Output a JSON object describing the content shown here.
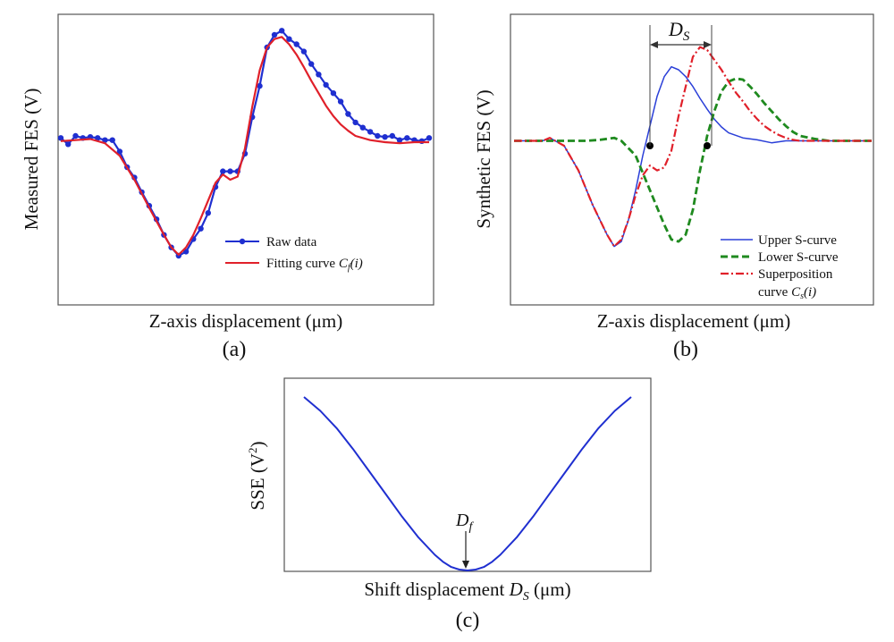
{
  "panels": [
    {
      "id": "a",
      "caption": "(a)",
      "xlabel": "Z-axis displacement (μm)",
      "ylabel": "Measured FES (V)",
      "legend": [
        {
          "label": "Raw data",
          "color": "#1f2fd0",
          "style": "line-dot"
        },
        {
          "label_main": "Fitting curve ",
          "label_sym": "C",
          "label_sub": "f",
          "label_tail": "(i)",
          "color": "#e0202a",
          "style": "line"
        }
      ]
    },
    {
      "id": "b",
      "caption": "(b)",
      "xlabel": "Z-axis displacement (μm)",
      "ylabel": "Synthetic FES (V)",
      "annotation": {
        "main": "D",
        "sub": "S"
      },
      "legend": [
        {
          "label": "Upper S-curve",
          "color": "#2a3fd8",
          "style": "line"
        },
        {
          "label": "Lower S-curve",
          "color": "#1f8a1f",
          "style": "dashed"
        },
        {
          "label": "Superposition",
          "label2_main": "curve ",
          "label2_sym": "C",
          "label2_sub": "s",
          "label2_tail": "(i)",
          "color": "#e0202a",
          "style": "dashdot"
        }
      ]
    },
    {
      "id": "c",
      "caption": "(c)",
      "xlabel_main": "Shift displacement ",
      "xlabel_sym": "D",
      "xlabel_sub": "S",
      "xlabel_tail": " (μm)",
      "ylabel_main": "SSE  (V",
      "ylabel_sup": "2",
      "ylabel_tail": ")",
      "annotation": {
        "main": "D",
        "sub": "f"
      }
    }
  ],
  "chart_data": [
    {
      "type": "line",
      "panel": "a",
      "xlim": [
        0,
        100
      ],
      "ylim": [
        -1.2,
        1.1
      ],
      "series": [
        {
          "name": "Raw data",
          "color": "#1f2fd0",
          "x": [
            0,
            2,
            4,
            6,
            8,
            10,
            12,
            14,
            16,
            18,
            20,
            22,
            24,
            26,
            28,
            30,
            32,
            34,
            36,
            38,
            40,
            42,
            44,
            46,
            48,
            50,
            52,
            54,
            56,
            58,
            60,
            62,
            64,
            66,
            68,
            70,
            72,
            74,
            76,
            78,
            80,
            82,
            84,
            86,
            88,
            90,
            92,
            94,
            96,
            98,
            100
          ],
          "y": [
            0.05,
            -0.01,
            0.07,
            0.05,
            0.06,
            0.05,
            0.03,
            0.03,
            -0.08,
            -0.23,
            -0.33,
            -0.47,
            -0.6,
            -0.73,
            -0.88,
            -1.0,
            -1.08,
            -1.04,
            -0.92,
            -0.82,
            -0.67,
            -0.42,
            -0.27,
            -0.27,
            -0.27,
            -0.1,
            0.25,
            0.55,
            0.92,
            1.04,
            1.08,
            1.0,
            0.95,
            0.88,
            0.76,
            0.66,
            0.56,
            0.48,
            0.4,
            0.28,
            0.2,
            0.15,
            0.11,
            0.07,
            0.06,
            0.07,
            0.03,
            0.05,
            0.03,
            0.02,
            0.05
          ]
        },
        {
          "name": "Fitting curve Cf(i)",
          "color": "#e0202a",
          "x": [
            0,
            4,
            8,
            12,
            16,
            20,
            24,
            28,
            30,
            32,
            34,
            36,
            38,
            40,
            42,
            44,
            46,
            48,
            50,
            52,
            54,
            56,
            58,
            60,
            62,
            64,
            66,
            68,
            70,
            72,
            74,
            76,
            78,
            80,
            84,
            88,
            92,
            96,
            100
          ],
          "y": [
            0.02,
            0.03,
            0.04,
            0.0,
            -0.12,
            -0.35,
            -0.62,
            -0.88,
            -1.0,
            -1.07,
            -1.0,
            -0.88,
            -0.72,
            -0.55,
            -0.38,
            -0.3,
            -0.35,
            -0.32,
            -0.05,
            0.35,
            0.7,
            0.92,
            1.0,
            1.02,
            0.95,
            0.85,
            0.73,
            0.6,
            0.48,
            0.36,
            0.26,
            0.18,
            0.12,
            0.07,
            0.03,
            0.01,
            0.0,
            0.01,
            0.01
          ]
        }
      ]
    },
    {
      "type": "line",
      "panel": "b",
      "xlim": [
        0,
        100
      ],
      "ylim": [
        -1.2,
        1.1
      ],
      "series": [
        {
          "name": "Upper S-curve",
          "color": "#2a3fd8",
          "x": [
            0,
            8,
            10,
            14,
            18,
            22,
            26,
            28,
            30,
            32,
            34,
            36,
            38,
            40,
            42,
            44,
            46,
            48,
            50,
            52,
            54,
            56,
            58,
            60,
            64,
            68,
            72,
            76,
            80,
            84,
            90,
            100
          ],
          "y": [
            0.0,
            0.0,
            0.03,
            -0.05,
            -0.3,
            -0.65,
            -0.95,
            -1.07,
            -1.02,
            -0.8,
            -0.5,
            -0.15,
            0.15,
            0.45,
            0.65,
            0.75,
            0.72,
            0.65,
            0.55,
            0.43,
            0.32,
            0.22,
            0.14,
            0.08,
            0.03,
            0.01,
            -0.02,
            0.0,
            0.0,
            0.0,
            0.0,
            0.0
          ]
        },
        {
          "name": "Lower S-curve",
          "color": "#1f8a1f",
          "x": [
            0,
            10,
            20,
            24,
            26,
            28,
            30,
            34,
            38,
            42,
            44,
            46,
            48,
            50,
            52,
            54,
            56,
            58,
            60,
            62,
            64,
            66,
            68,
            70,
            72,
            74,
            76,
            78,
            80,
            84,
            88,
            92,
            96,
            100
          ],
          "y": [
            0.0,
            0.0,
            0.0,
            0.01,
            0.02,
            0.03,
            0.0,
            -0.15,
            -0.5,
            -0.85,
            -1.0,
            -1.02,
            -0.95,
            -0.7,
            -0.3,
            0.05,
            0.3,
            0.5,
            0.6,
            0.63,
            0.62,
            0.55,
            0.47,
            0.38,
            0.3,
            0.22,
            0.15,
            0.09,
            0.05,
            0.02,
            0.0,
            0.0,
            0.0,
            0.0
          ]
        },
        {
          "name": "Superposition curve Cs(i)",
          "color": "#e0202a",
          "x": [
            0,
            8,
            10,
            14,
            18,
            22,
            26,
            28,
            30,
            32,
            34,
            36,
            38,
            40,
            42,
            44,
            46,
            48,
            50,
            52,
            54,
            56,
            58,
            60,
            62,
            64,
            66,
            68,
            70,
            72,
            74,
            76,
            78,
            80,
            84,
            88,
            92,
            96,
            100
          ],
          "y": [
            0.0,
            0.0,
            0.03,
            -0.05,
            -0.3,
            -0.65,
            -0.95,
            -1.07,
            -1.0,
            -0.8,
            -0.55,
            -0.35,
            -0.25,
            -0.3,
            -0.27,
            -0.1,
            0.25,
            0.55,
            0.85,
            0.95,
            0.92,
            0.82,
            0.72,
            0.6,
            0.49,
            0.4,
            0.3,
            0.22,
            0.15,
            0.1,
            0.06,
            0.03,
            0.01,
            0.0,
            0.0,
            0.0,
            0.0,
            0.0,
            0.0
          ]
        }
      ],
      "markers": [
        {
          "x": 38,
          "y": -0.05
        },
        {
          "x": 54,
          "y": -0.05
        }
      ]
    },
    {
      "type": "line",
      "panel": "c",
      "xlim": [
        0,
        100
      ],
      "ylim": [
        0,
        1
      ],
      "series": [
        {
          "name": "SSE",
          "color": "#1f2fd0",
          "x": [
            0,
            5,
            10,
            15,
            20,
            25,
            30,
            35,
            40,
            42.5,
            45,
            47.5,
            50,
            52.5,
            55,
            57.5,
            60,
            65,
            70,
            75,
            80,
            85,
            90,
            95,
            100
          ],
          "y": [
            1.0,
            0.92,
            0.82,
            0.7,
            0.57,
            0.44,
            0.31,
            0.19,
            0.09,
            0.05,
            0.02,
            0.005,
            0.0,
            0.005,
            0.02,
            0.05,
            0.09,
            0.19,
            0.31,
            0.44,
            0.57,
            0.7,
            0.82,
            0.92,
            1.0
          ]
        }
      ],
      "minimum_x": 50
    }
  ]
}
